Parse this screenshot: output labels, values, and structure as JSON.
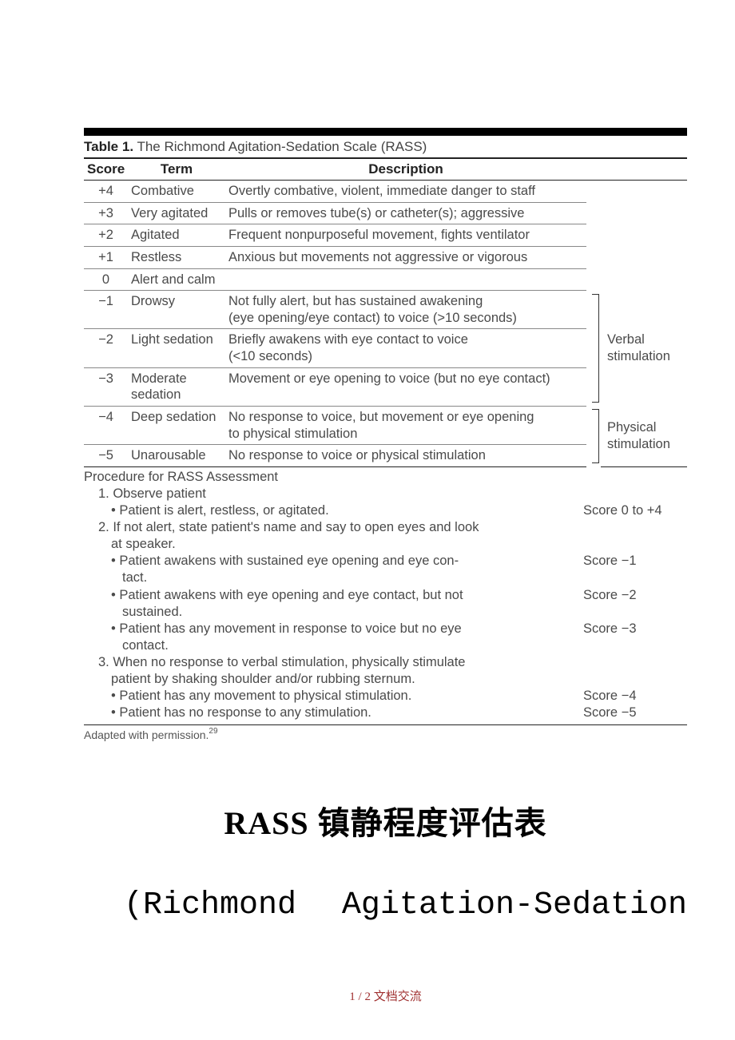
{
  "caption_bold": "Table 1.",
  "caption_rest": " The Richmond Agitation-Sedation Scale (RASS)",
  "headers": {
    "score": "Score",
    "term": "Term",
    "desc": "Description"
  },
  "rows": [
    {
      "score": "+4",
      "term": "Combative",
      "desc": "Overtly combative, violent, immediate danger to staff"
    },
    {
      "score": "+3",
      "term": "Very agitated",
      "desc": "Pulls or removes tube(s) or catheter(s); aggressive"
    },
    {
      "score": "+2",
      "term": "Agitated",
      "desc": "Frequent nonpurposeful movement, fights ventilator"
    },
    {
      "score": "+1",
      "term": "Restless",
      "desc": "Anxious but movements not aggressive or vigorous"
    },
    {
      "score": "0",
      "term": "Alert and calm",
      "desc": ""
    },
    {
      "score": "−1",
      "term": "Drowsy",
      "desc": "Not fully alert, but has sustained awakening\n   (eye opening/eye contact) to voice (>10 seconds)"
    },
    {
      "score": "−2",
      "term": "Light sedation",
      "desc": "Briefly awakens with eye contact to voice\n   (<10 seconds)"
    },
    {
      "score": "−3",
      "term": "Moderate sedation",
      "desc": "Movement or eye opening to voice (but no eye contact)"
    },
    {
      "score": "−4",
      "term": "Deep sedation",
      "desc": "No response to voice, but movement or eye opening\n   to physical stimulation"
    },
    {
      "score": "−5",
      "term": "Unarousable",
      "desc": "No response to voice or physical stimulation"
    }
  ],
  "stim": {
    "verbal": "Verbal\n   stimulation",
    "physical": "Physical\n   stimulation"
  },
  "procedure": {
    "title": "Procedure for RASS Assessment",
    "lines": [
      {
        "text": "1.  Observe patient",
        "score": "",
        "indent": 1
      },
      {
        "text": "•  Patient is alert, restless, or agitated.",
        "score": "Score 0 to +4",
        "indent": 2
      },
      {
        "text": "2.  If not alert, state patient's name and say to open eyes and look",
        "score": "",
        "indent": 1
      },
      {
        "text": "at speaker.",
        "score": "",
        "indent": 2,
        "nogap": true
      },
      {
        "text": "•  Patient awakens with sustained eye opening and eye con-",
        "score": "Score −1",
        "indent": 2
      },
      {
        "text": "tact.",
        "score": "",
        "indent": 2,
        "continue": true
      },
      {
        "text": "•  Patient awakens with eye opening and eye contact, but not",
        "score": "Score −2",
        "indent": 2
      },
      {
        "text": "sustained.",
        "score": "",
        "indent": 2,
        "continue": true
      },
      {
        "text": "•  Patient has any movement in response to voice but no eye",
        "score": "Score −3",
        "indent": 2
      },
      {
        "text": "contact.",
        "score": "",
        "indent": 2,
        "continue": true
      },
      {
        "text": "3.  When no response to verbal stimulation, physically stimulate",
        "score": "",
        "indent": 1
      },
      {
        "text": "patient by shaking shoulder and/or rubbing sternum.",
        "score": "",
        "indent": 2,
        "nogap": true
      },
      {
        "text": "•  Patient has any movement to physical stimulation.",
        "score": "Score −4",
        "indent": 2
      },
      {
        "text": "•  Patient has no response to any stimulation.",
        "score": "Score −5",
        "indent": 2
      }
    ]
  },
  "footnote_text": "Adapted with permission.",
  "footnote_sup": "29",
  "big_title": "RASS 镇静程度评估表",
  "sub_left": "(Richmond",
  "sub_right": "Agitation-Sedation",
  "pagenum": "1 / 2 文档交流"
}
